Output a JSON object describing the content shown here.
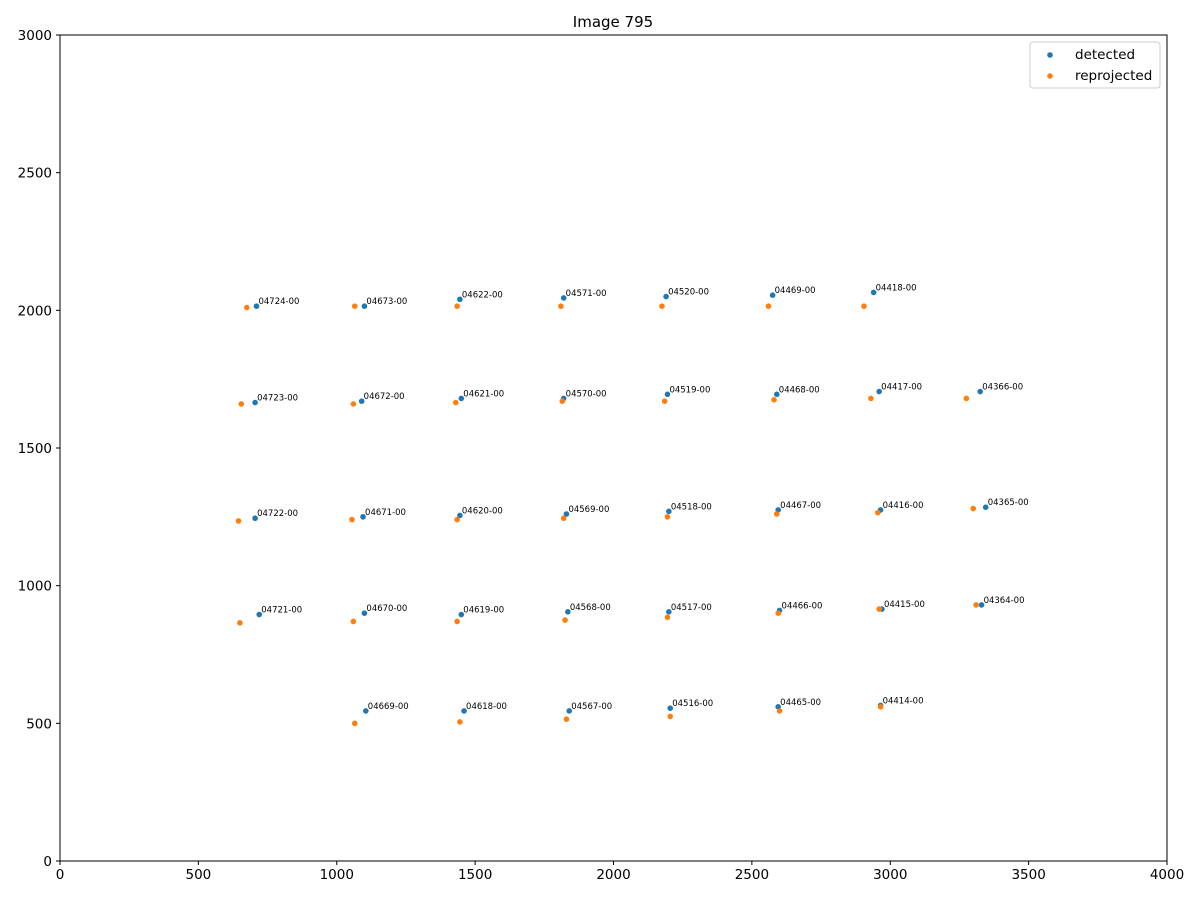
{
  "chart_data": {
    "type": "scatter",
    "title": "Image 795",
    "xlabel": "",
    "ylabel": "",
    "xlim": [
      0,
      4000
    ],
    "ylim": [
      0,
      3000
    ],
    "xticks": [
      0,
      500,
      1000,
      1500,
      2000,
      2500,
      3000,
      3500,
      4000
    ],
    "yticks": [
      0,
      500,
      1000,
      1500,
      2000,
      2500,
      3000
    ],
    "grid": false,
    "legend_position": "top-right",
    "series": [
      {
        "name": "detected",
        "color": "#1f77b4",
        "points": [
          {
            "x": 710,
            "y": 2015
          },
          {
            "x": 1100,
            "y": 2015
          },
          {
            "x": 1445,
            "y": 2040
          },
          {
            "x": 1820,
            "y": 2045
          },
          {
            "x": 2190,
            "y": 2050
          },
          {
            "x": 2575,
            "y": 2055
          },
          {
            "x": 2940,
            "y": 2065
          },
          {
            "x": 705,
            "y": 1665
          },
          {
            "x": 1090,
            "y": 1670
          },
          {
            "x": 1450,
            "y": 1680
          },
          {
            "x": 1820,
            "y": 1680
          },
          {
            "x": 2195,
            "y": 1695
          },
          {
            "x": 2590,
            "y": 1695
          },
          {
            "x": 2960,
            "y": 1705
          },
          {
            "x": 3325,
            "y": 1705
          },
          {
            "x": 705,
            "y": 1245
          },
          {
            "x": 1095,
            "y": 1250
          },
          {
            "x": 1445,
            "y": 1255
          },
          {
            "x": 1830,
            "y": 1260
          },
          {
            "x": 2200,
            "y": 1270
          },
          {
            "x": 2595,
            "y": 1275
          },
          {
            "x": 2965,
            "y": 1275
          },
          {
            "x": 3345,
            "y": 1285
          },
          {
            "x": 720,
            "y": 895
          },
          {
            "x": 1100,
            "y": 900
          },
          {
            "x": 1450,
            "y": 895
          },
          {
            "x": 1835,
            "y": 905
          },
          {
            "x": 2200,
            "y": 905
          },
          {
            "x": 2600,
            "y": 910
          },
          {
            "x": 2970,
            "y": 915
          },
          {
            "x": 3330,
            "y": 930
          },
          {
            "x": 1105,
            "y": 545
          },
          {
            "x": 1460,
            "y": 545
          },
          {
            "x": 1840,
            "y": 545
          },
          {
            "x": 2205,
            "y": 555
          },
          {
            "x": 2595,
            "y": 560
          },
          {
            "x": 2965,
            "y": 565
          }
        ]
      },
      {
        "name": "reprojected",
        "color": "#ff7f0e",
        "points": [
          {
            "x": 675,
            "y": 2010
          },
          {
            "x": 1065,
            "y": 2015
          },
          {
            "x": 1435,
            "y": 2015
          },
          {
            "x": 1810,
            "y": 2015
          },
          {
            "x": 2175,
            "y": 2015
          },
          {
            "x": 2560,
            "y": 2015
          },
          {
            "x": 2905,
            "y": 2015
          },
          {
            "x": 655,
            "y": 1660
          },
          {
            "x": 1060,
            "y": 1660
          },
          {
            "x": 1430,
            "y": 1665
          },
          {
            "x": 1815,
            "y": 1670
          },
          {
            "x": 2185,
            "y": 1670
          },
          {
            "x": 2580,
            "y": 1675
          },
          {
            "x": 2930,
            "y": 1680
          },
          {
            "x": 3275,
            "y": 1680
          },
          {
            "x": 645,
            "y": 1235
          },
          {
            "x": 1055,
            "y": 1240
          },
          {
            "x": 1435,
            "y": 1240
          },
          {
            "x": 1820,
            "y": 1245
          },
          {
            "x": 2195,
            "y": 1250
          },
          {
            "x": 2590,
            "y": 1260
          },
          {
            "x": 2955,
            "y": 1265
          },
          {
            "x": 3300,
            "y": 1280
          },
          {
            "x": 650,
            "y": 865
          },
          {
            "x": 1060,
            "y": 870
          },
          {
            "x": 1435,
            "y": 870
          },
          {
            "x": 1825,
            "y": 875
          },
          {
            "x": 2195,
            "y": 885
          },
          {
            "x": 2595,
            "y": 900
          },
          {
            "x": 2960,
            "y": 915
          },
          {
            "x": 3310,
            "y": 930
          },
          {
            "x": 1065,
            "y": 500
          },
          {
            "x": 1445,
            "y": 505
          },
          {
            "x": 1830,
            "y": 515
          },
          {
            "x": 2205,
            "y": 525
          },
          {
            "x": 2600,
            "y": 545
          },
          {
            "x": 2965,
            "y": 560
          }
        ]
      }
    ],
    "annotations": [
      {
        "text": "04724-00",
        "x": 710,
        "y": 2015
      },
      {
        "text": "04673-00",
        "x": 1100,
        "y": 2015
      },
      {
        "text": "04622-00",
        "x": 1445,
        "y": 2040
      },
      {
        "text": "04571-00",
        "x": 1820,
        "y": 2045
      },
      {
        "text": "04520-00",
        "x": 2190,
        "y": 2050
      },
      {
        "text": "04469-00",
        "x": 2575,
        "y": 2055
      },
      {
        "text": "04418-00",
        "x": 2940,
        "y": 2065
      },
      {
        "text": "04723-00",
        "x": 705,
        "y": 1665
      },
      {
        "text": "04672-00",
        "x": 1090,
        "y": 1670
      },
      {
        "text": "04621-00",
        "x": 1450,
        "y": 1680
      },
      {
        "text": "04570-00",
        "x": 1820,
        "y": 1680
      },
      {
        "text": "04519-00",
        "x": 2195,
        "y": 1695
      },
      {
        "text": "04468-00",
        "x": 2590,
        "y": 1695
      },
      {
        "text": "04417-00",
        "x": 2960,
        "y": 1705
      },
      {
        "text": "04366-00",
        "x": 3325,
        "y": 1705
      },
      {
        "text": "04722-00",
        "x": 705,
        "y": 1245
      },
      {
        "text": "04671-00",
        "x": 1095,
        "y": 1250
      },
      {
        "text": "04620-00",
        "x": 1445,
        "y": 1255
      },
      {
        "text": "04569-00",
        "x": 1830,
        "y": 1260
      },
      {
        "text": "04518-00",
        "x": 2200,
        "y": 1270
      },
      {
        "text": "04467-00",
        "x": 2595,
        "y": 1275
      },
      {
        "text": "04416-00",
        "x": 2965,
        "y": 1275
      },
      {
        "text": "04365-00",
        "x": 3345,
        "y": 1285
      },
      {
        "text": "04721-00",
        "x": 720,
        "y": 895
      },
      {
        "text": "04670-00",
        "x": 1100,
        "y": 900
      },
      {
        "text": "04619-00",
        "x": 1450,
        "y": 895
      },
      {
        "text": "04568-00",
        "x": 1835,
        "y": 905
      },
      {
        "text": "04517-00",
        "x": 2200,
        "y": 905
      },
      {
        "text": "04466-00",
        "x": 2600,
        "y": 910
      },
      {
        "text": "04415-00",
        "x": 2970,
        "y": 915
      },
      {
        "text": "04364-00",
        "x": 3330,
        "y": 930
      },
      {
        "text": "04669-00",
        "x": 1105,
        "y": 545
      },
      {
        "text": "04618-00",
        "x": 1460,
        "y": 545
      },
      {
        "text": "04567-00",
        "x": 1840,
        "y": 545
      },
      {
        "text": "04516-00",
        "x": 2205,
        "y": 555
      },
      {
        "text": "04465-00",
        "x": 2595,
        "y": 560
      },
      {
        "text": "04414-00",
        "x": 2965,
        "y": 565
      }
    ]
  }
}
